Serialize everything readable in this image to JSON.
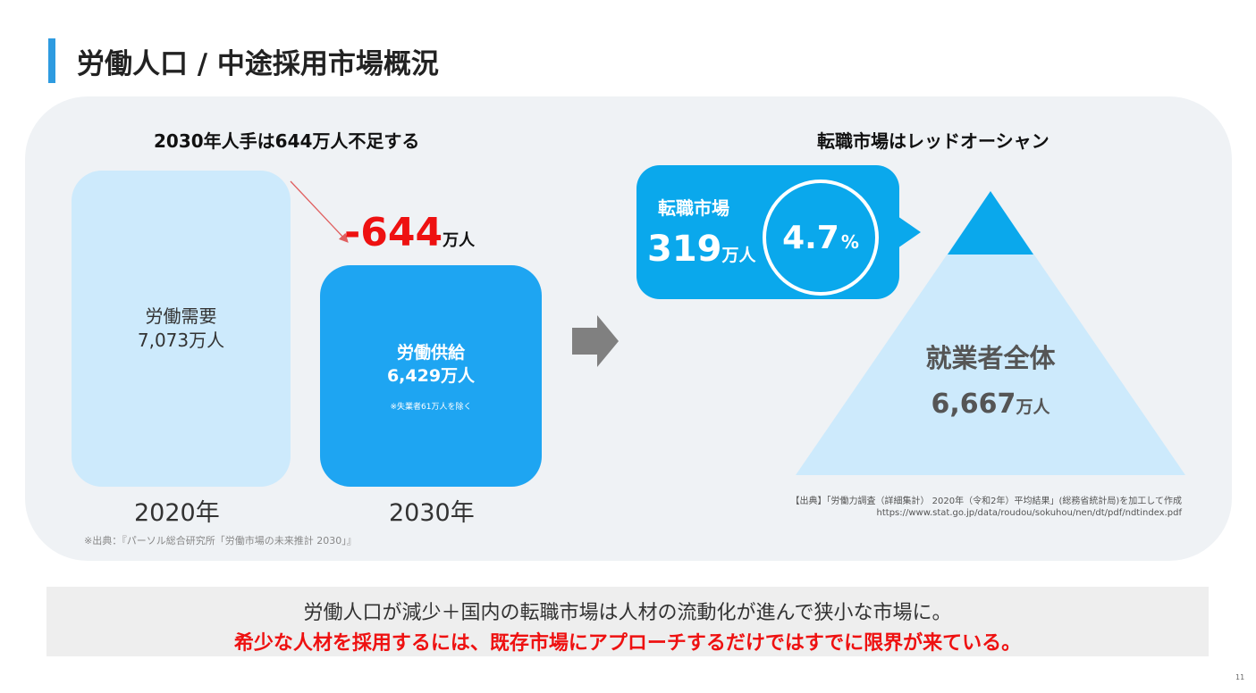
{
  "slide": {
    "title": "労働人口 / 中途採用市場概況",
    "page_number": "11"
  },
  "left": {
    "heading": "2030年人手は644万人不足する",
    "demand": {
      "label": "労働需要",
      "value": "7,073万人",
      "year": "2020年"
    },
    "supply": {
      "label": "労働供給",
      "value": "6,429万人",
      "note": "※失業者61万人を除く",
      "year": "2030年"
    },
    "shortage": {
      "value": "-644",
      "unit": "万人"
    },
    "source": "※出典：『パーソル総合研究所「労働市場の未来推計 2030」』"
  },
  "right": {
    "heading": "転職市場はレッドオーシャン",
    "market": {
      "label": "転職市場",
      "value": "319",
      "unit": "万人"
    },
    "ratio": {
      "value": "4.7",
      "unit": "%"
    },
    "total": {
      "label": "就業者全体",
      "value": "6,667",
      "unit": "万人"
    },
    "source_line1": "【出典】「労働力調査（詳細集計） 2020年（令和2年）平均結果」(総務省統計局)を加工して作成",
    "source_line2": "https://www.stat.go.jp/data/roudou/sokuhou/nen/dt/pdf/ndtindex.pdf"
  },
  "bottom": {
    "line1": "労働人口が減少＋国内の転職市場は人材の流動化が進んで狭小な市場に。",
    "line2": "希少な人材を採用するには、既存市場にアプローチするだけではすでに限界が来ている。"
  },
  "colors": {
    "accent_blue": "#2e9be0",
    "supply_blue": "#1ea5f2",
    "light_blue": "#cdeafc",
    "bubble_blue": "#0aa8ec",
    "alert_red": "#ee1111"
  }
}
